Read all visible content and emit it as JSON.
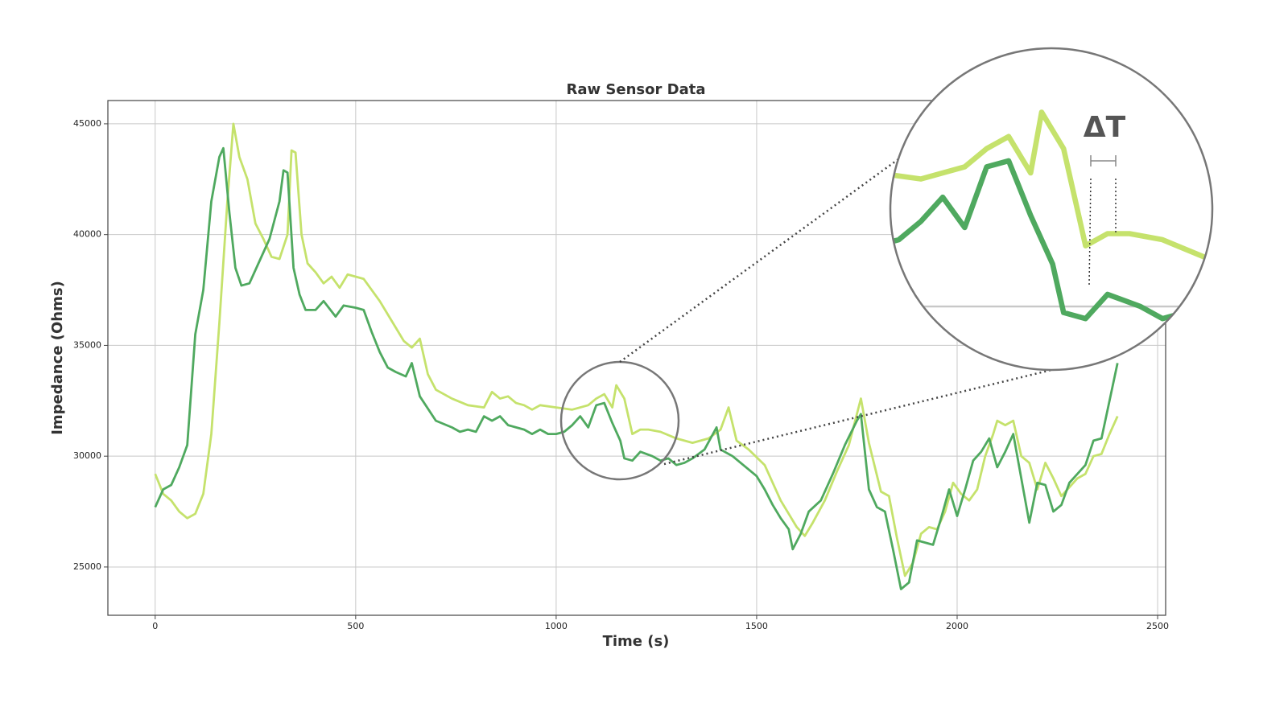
{
  "chart_data": {
    "type": "line",
    "title": "Raw Sensor Data",
    "xlabel": "Time (s)",
    "ylabel": "Impedance (Ohms)",
    "annotation": "ΔT",
    "xlim": [
      -118,
      2520
    ],
    "ylim": [
      22820,
      46050
    ],
    "xticks": [
      0,
      500,
      1000,
      1500,
      2000,
      2500
    ],
    "yticks": [
      25000,
      30000,
      35000,
      40000,
      45000
    ],
    "grid": true,
    "series": [
      {
        "color": "#4fa95f",
        "x": [
          0,
          20,
          40,
          60,
          80,
          100,
          120,
          140,
          160,
          170,
          185,
          200,
          215,
          235,
          260,
          285,
          310,
          320,
          330,
          345,
          360,
          375,
          400,
          420,
          450,
          470,
          500,
          520,
          540,
          560,
          580,
          600,
          625,
          640,
          660,
          700,
          740,
          760,
          780,
          800,
          820,
          840,
          860,
          880,
          900,
          920,
          940,
          960,
          980,
          1000,
          1020,
          1040,
          1060,
          1080,
          1100,
          1120,
          1140,
          1160,
          1170,
          1190,
          1210,
          1240,
          1260,
          1280,
          1300,
          1320,
          1340,
          1370,
          1400,
          1410,
          1440,
          1460,
          1480,
          1500,
          1520,
          1540,
          1560,
          1580,
          1590,
          1610,
          1630,
          1660,
          1690,
          1720,
          1750,
          1760,
          1780,
          1800,
          1820,
          1840,
          1860,
          1880,
          1900,
          1920,
          1940,
          1960,
          1980,
          2000,
          2020,
          2040,
          2060,
          2080,
          2100,
          2120,
          2140,
          2160,
          2180,
          2200,
          2220,
          2240,
          2260,
          2280,
          2300,
          2320,
          2340,
          2360,
          2380,
          2400
        ],
        "values": [
          27700,
          28500,
          28700,
          29500,
          30500,
          35500,
          37500,
          41500,
          43500,
          43900,
          41000,
          38500,
          37700,
          37800,
          38800,
          39800,
          41500,
          42900,
          42800,
          38500,
          37300,
          36600,
          36600,
          37000,
          36300,
          36800,
          36700,
          36600,
          35600,
          34700,
          34000,
          33800,
          33600,
          34200,
          32700,
          31600,
          31300,
          31100,
          31200,
          31100,
          31800,
          31600,
          31800,
          31400,
          31300,
          31200,
          31000,
          31200,
          31000,
          31000,
          31100,
          31400,
          31800,
          31300,
          32300,
          32400,
          31500,
          30700,
          29900,
          29800,
          30200,
          30000,
          29800,
          29900,
          29600,
          29700,
          29900,
          30300,
          31300,
          30300,
          30000,
          29700,
          29400,
          29100,
          28500,
          27800,
          27200,
          26700,
          25800,
          26500,
          27500,
          28000,
          29200,
          30500,
          31600,
          31900,
          28500,
          27700,
          27500,
          25800,
          24000,
          24300,
          26200,
          26100,
          26000,
          27200,
          28500,
          27300,
          28500,
          29800,
          30200,
          30800,
          29500,
          30200,
          31000,
          29000,
          27000,
          28800,
          28700,
          27500,
          27800,
          28800,
          29200,
          29600,
          30700,
          30800,
          32500,
          34200
        ]
      },
      {
        "color": "#c5e26c",
        "x": [
          0,
          20,
          40,
          60,
          80,
          100,
          120,
          140,
          160,
          180,
          195,
          210,
          230,
          250,
          270,
          290,
          310,
          330,
          340,
          350,
          365,
          380,
          400,
          420,
          440,
          460,
          480,
          500,
          520,
          540,
          560,
          580,
          600,
          620,
          640,
          660,
          680,
          700,
          740,
          780,
          820,
          840,
          860,
          880,
          900,
          920,
          940,
          960,
          1000,
          1040,
          1080,
          1100,
          1120,
          1140,
          1150,
          1170,
          1190,
          1210,
          1230,
          1260,
          1300,
          1340,
          1380,
          1410,
          1430,
          1450,
          1480,
          1520,
          1560,
          1580,
          1600,
          1620,
          1640,
          1670,
          1700,
          1730,
          1760,
          1780,
          1810,
          1830,
          1850,
          1870,
          1890,
          1910,
          1930,
          1950,
          1970,
          1990,
          2010,
          2030,
          2050,
          2070,
          2090,
          2100,
          2120,
          2140,
          2160,
          2180,
          2200,
          2220,
          2240,
          2260,
          2280,
          2300,
          2320,
          2340,
          2360,
          2380,
          2400
        ],
        "values": [
          29200,
          28300,
          28000,
          27500,
          27200,
          27400,
          28300,
          31000,
          36000,
          41500,
          45000,
          43500,
          42500,
          40500,
          39800,
          39000,
          38900,
          40000,
          43800,
          43700,
          40000,
          38700,
          38300,
          37800,
          38100,
          37600,
          38200,
          38100,
          38000,
          37500,
          37000,
          36400,
          35800,
          35200,
          34900,
          35300,
          33700,
          33000,
          32600,
          32300,
          32200,
          32900,
          32600,
          32700,
          32400,
          32300,
          32100,
          32300,
          32200,
          32100,
          32300,
          32600,
          32800,
          32200,
          33200,
          32600,
          31000,
          31200,
          31200,
          31100,
          30800,
          30600,
          30800,
          31200,
          32200,
          30700,
          30300,
          29600,
          28000,
          27400,
          26800,
          26400,
          27000,
          28000,
          29300,
          30500,
          32600,
          30600,
          28400,
          28200,
          26300,
          24600,
          25200,
          26500,
          26800,
          26700,
          27500,
          28800,
          28300,
          28000,
          28500,
          30000,
          31000,
          31600,
          31400,
          31600,
          30000,
          29700,
          28500,
          29700,
          29000,
          28200,
          28600,
          29000,
          29200,
          30000,
          30100,
          31000,
          31800
        ]
      }
    ]
  }
}
